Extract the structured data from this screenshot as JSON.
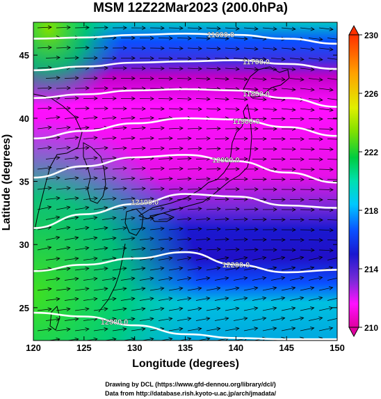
{
  "title": "MSM 12Z22Mar2023 (200.0hPa)",
  "x_axis": {
    "label": "Longitude (degrees)",
    "range": [
      120,
      150
    ],
    "ticks": [
      "120",
      "125",
      "130",
      "135",
      "140",
      "145",
      "150"
    ]
  },
  "y_axis": {
    "label": "Latitude  (degrees)",
    "range": [
      22.4,
      47.6
    ],
    "ticks": [
      "25",
      "30",
      "35",
      "40",
      "45"
    ]
  },
  "colorbar": {
    "range": [
      210,
      230
    ],
    "ticks": [
      "210",
      "214",
      "218",
      "222",
      "226",
      "230"
    ],
    "colors": [
      "#e000a0",
      "#ff10ff",
      "#7a2ad8",
      "#1a18d0",
      "#0a50ff",
      "#00c8ff",
      "#00e0b0",
      "#00cc40",
      "#80e000",
      "#e0f000",
      "#ffa000",
      "#ff3000"
    ]
  },
  "contours": [
    {
      "label": "11600.0",
      "lat": [
        46.3,
        46.4,
        46.6,
        46.7,
        46.6,
        46.3,
        45.9
      ]
    },
    {
      "label": "11700.0",
      "lat": [
        43.8,
        44.1,
        44.4,
        44.5,
        44.6,
        44.3,
        43.9
      ]
    },
    {
      "label": "11800.0",
      "lat": [
        41.6,
        41.9,
        42.2,
        42.3,
        42.2,
        41.6,
        40.9
      ]
    },
    {
      "label": "11900.0",
      "lat": [
        38.4,
        39.0,
        39.6,
        40.0,
        39.9,
        39.3,
        38.6
      ]
    },
    {
      "label": "12000.0",
      "lat": [
        35.3,
        36.2,
        36.9,
        37.1,
        36.6,
        35.7,
        34.9
      ]
    },
    {
      "label": "12100.0",
      "lat": [
        31.3,
        32.4,
        33.2,
        34.0,
        33.8,
        33.1,
        32.9
      ]
    },
    {
      "label": "12200.0",
      "lat": [
        27.9,
        28.4,
        28.9,
        29.4,
        28.4,
        27.8,
        28.0
      ]
    },
    {
      "label": "12300.0",
      "lat": [
        24.6,
        24.3,
        23.6,
        22.9,
        22.6,
        22.5,
        22.5
      ]
    }
  ],
  "credits": {
    "line1": "Drawing by DCL (https://www.gfd-dennou.org/library/dcl/)",
    "line2": "Data from http://database.rish.kyoto-u.ac.jp/arch/jmadata/"
  }
}
